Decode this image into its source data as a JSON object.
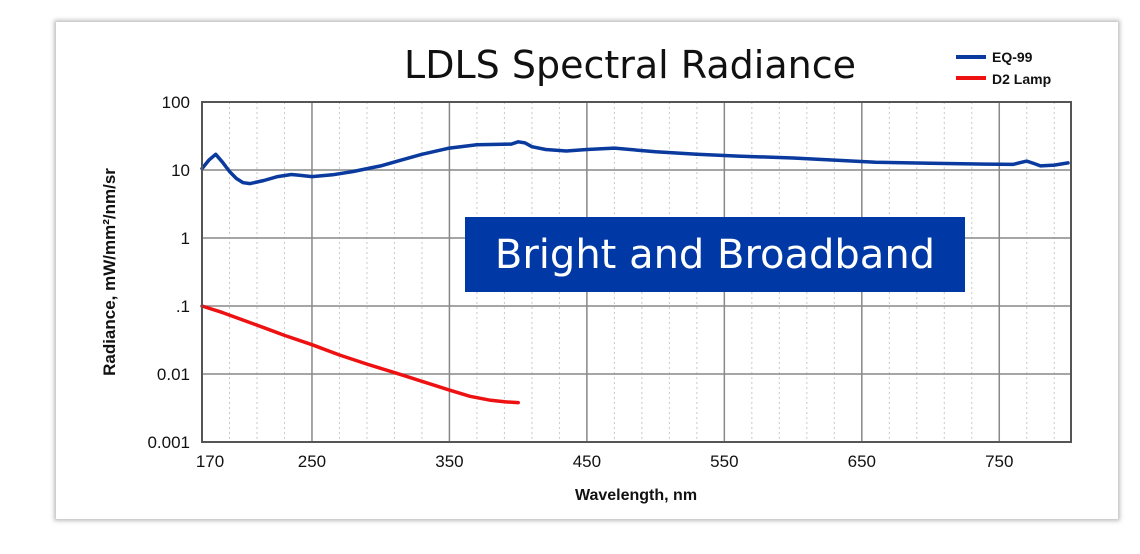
{
  "chart_data": {
    "type": "line",
    "title": "LDLS Spectral Radiance",
    "xlabel": "Wavelength, nm",
    "ylabel": "Radiance, mW/mm²/nm/sr",
    "xlim": [
      170,
      800
    ],
    "ylim": [
      0.001,
      100
    ],
    "yscale": "log",
    "x_ticks": [
      "170",
      "250",
      "350",
      "450",
      "550",
      "650",
      "750"
    ],
    "y_ticks": [
      "100",
      "10",
      "1",
      ".1",
      "0.01",
      "0.001"
    ],
    "grid": true,
    "legend_position": "top-right",
    "annotation": "Bright and Broadband",
    "series": [
      {
        "name": "EQ-99",
        "color": "#0a3a9e",
        "x": [
          170,
          175,
          180,
          185,
          190,
          195,
          200,
          205,
          215,
          225,
          235,
          240,
          250,
          265,
          280,
          300,
          315,
          330,
          350,
          370,
          395,
          400,
          405,
          410,
          420,
          435,
          450,
          470,
          500,
          530,
          560,
          600,
          630,
          660,
          700,
          740,
          760,
          765,
          770,
          775,
          780,
          790,
          800
        ],
        "y": [
          10.5,
          14,
          17,
          13,
          9.5,
          7.5,
          6.5,
          6.3,
          7,
          8,
          8.6,
          8.4,
          8,
          8.5,
          9.5,
          11.5,
          14,
          17,
          21,
          23.5,
          24,
          26,
          25,
          22,
          20,
          19,
          20,
          21,
          18.5,
          17,
          16,
          15,
          14,
          13,
          12.6,
          12.2,
          12.1,
          12.8,
          13.5,
          12.5,
          11.5,
          11.8,
          12.7
        ]
      },
      {
        "name": "D2 Lamp",
        "color": "#ee1111",
        "x": [
          170,
          185,
          200,
          215,
          230,
          250,
          270,
          290,
          310,
          330,
          350,
          365,
          380,
          390,
          400
        ],
        "y": [
          0.1,
          0.08,
          0.062,
          0.048,
          0.037,
          0.027,
          0.019,
          0.014,
          0.0105,
          0.0078,
          0.0058,
          0.0047,
          0.0041,
          0.0039,
          0.0038
        ]
      }
    ]
  }
}
